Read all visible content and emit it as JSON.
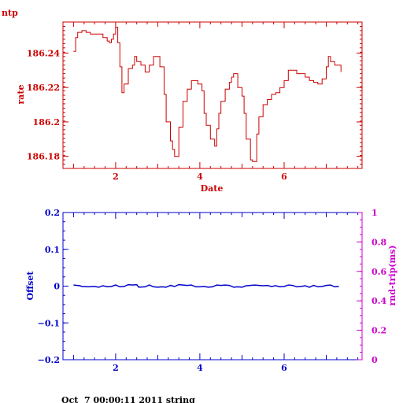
{
  "header_label": "ntp",
  "footer": "Oct  7 00:00:11 2011 string",
  "colors": {
    "top": "#cc0000",
    "offset": "#0000cc",
    "rtt": "#cc00cc",
    "footer": "#000000"
  },
  "chart_data": [
    {
      "type": "line",
      "title": "",
      "xlabel": "Date",
      "ylabel": "rate",
      "xlim": [
        0.75,
        7.85
      ],
      "ylim": [
        186.173,
        186.258
      ],
      "x_ticks": [
        2,
        4,
        6
      ],
      "y_ticks": [
        186.18,
        186.2,
        186.22,
        186.24
      ],
      "y_tick_labels": [
        "186.18",
        "186.2",
        "186.22",
        "186.24"
      ],
      "series": [
        {
          "x": [
            1.0,
            1.05,
            1.1,
            1.2,
            1.3,
            1.4,
            1.5,
            1.6,
            1.7,
            1.8,
            1.85,
            1.9,
            1.95,
            2.0,
            2.05,
            2.1,
            2.15,
            2.2,
            2.3,
            2.4,
            2.45,
            2.5,
            2.6,
            2.7,
            2.8,
            2.9,
            3.0,
            3.05,
            3.15,
            3.2,
            3.3,
            3.35,
            3.4,
            3.5,
            3.6,
            3.7,
            3.8,
            3.85,
            3.95,
            4.05,
            4.1,
            4.15,
            4.25,
            4.35,
            4.4,
            4.45,
            4.5,
            4.6,
            4.7,
            4.75,
            4.8,
            4.9,
            5.0,
            5.05,
            5.1,
            5.2,
            5.25,
            5.35,
            5.4,
            5.5,
            5.6,
            5.7,
            5.8,
            5.9,
            6.0,
            6.1,
            6.2,
            6.3,
            6.4,
            6.5,
            6.6,
            6.7,
            6.8,
            6.9,
            7.0,
            7.05,
            7.1,
            7.2,
            7.3,
            7.35
          ],
          "y": [
            186.241,
            186.249,
            186.252,
            186.253,
            186.252,
            186.251,
            186.251,
            186.251,
            186.249,
            186.247,
            186.246,
            186.248,
            186.251,
            186.255,
            186.246,
            186.232,
            186.217,
            186.222,
            186.231,
            186.233,
            186.238,
            186.235,
            186.233,
            186.229,
            186.233,
            186.238,
            186.238,
            186.232,
            186.216,
            186.2,
            186.189,
            186.184,
            186.18,
            186.197,
            186.212,
            186.219,
            186.224,
            186.224,
            186.222,
            186.218,
            186.205,
            186.198,
            186.19,
            186.186,
            186.196,
            186.205,
            186.212,
            186.219,
            186.223,
            186.226,
            186.228,
            186.22,
            186.215,
            186.205,
            186.19,
            186.178,
            186.177,
            186.193,
            186.203,
            186.21,
            186.213,
            186.216,
            186.217,
            186.22,
            186.224,
            186.23,
            186.23,
            186.228,
            186.228,
            186.226,
            186.224,
            186.223,
            186.222,
            186.225,
            186.232,
            186.238,
            186.235,
            186.233,
            186.233,
            186.229
          ]
        }
      ]
    },
    {
      "type": "line",
      "title": "",
      "xlabel": "",
      "ylabel": "Offset",
      "y2label": "rnd-trip(ms)",
      "xlim": [
        0.75,
        7.85
      ],
      "ylim": [
        -0.2,
        0.2
      ],
      "y2lim": [
        0,
        1
      ],
      "x_ticks": [
        2,
        4,
        6
      ],
      "y_ticks": [
        -0.2,
        -0.1,
        0,
        0.1,
        0.2
      ],
      "y_tick_labels": [
        "−0.2",
        "−0.1",
        "0",
        "0.1",
        "0.2"
      ],
      "y2_ticks": [
        0,
        0.2,
        0.4,
        0.6,
        0.8,
        1
      ],
      "y2_tick_labels": [
        "0",
        "0.2",
        "0.4",
        "0.6",
        "0.8",
        "1"
      ],
      "series": [
        {
          "x": [
            1.0,
            1.15,
            1.2,
            1.35,
            1.5,
            1.6,
            1.7,
            1.8,
            1.9,
            2.0,
            2.1,
            2.2,
            2.3,
            2.4,
            2.5,
            2.55,
            2.7,
            2.8,
            2.9,
            3.0,
            3.1,
            3.2,
            3.3,
            3.4,
            3.5,
            3.6,
            3.7,
            3.8,
            3.9,
            4.0,
            4.1,
            4.2,
            4.3,
            4.4,
            4.5,
            4.6,
            4.7,
            4.8,
            4.9,
            5.0,
            5.1,
            5.2,
            5.3,
            5.4,
            5.5,
            5.6,
            5.7,
            5.8,
            5.9,
            6.0,
            6.1,
            6.2,
            6.3,
            6.4,
            6.5,
            6.6,
            6.7,
            6.8,
            6.9,
            7.0,
            7.1,
            7.2,
            7.3
          ],
          "y": [
            0.003,
            0.001,
            -0.001,
            -0.002,
            -0.001,
            -0.003,
            0.001,
            -0.002,
            -0.001,
            0.003,
            -0.002,
            -0.001,
            0.004,
            0.003,
            0.004,
            -0.003,
            -0.002,
            0.003,
            -0.002,
            -0.003,
            -0.002,
            -0.003,
            0.002,
            -0.001,
            0.004,
            0.003,
            0.002,
            0.003,
            -0.002,
            -0.002,
            -0.001,
            -0.003,
            -0.002,
            0.003,
            0.002,
            0.003,
            0.002,
            -0.003,
            -0.002,
            -0.003,
            0.001,
            0.002,
            0.003,
            0.002,
            0.001,
            0.002,
            -0.001,
            0.001,
            -0.002,
            -0.001,
            0.003,
            0.002,
            -0.002,
            -0.001,
            0.001,
            -0.003,
            0.002,
            -0.002,
            -0.001,
            0.002,
            0.003,
            -0.002,
            -0.001
          ]
        }
      ]
    }
  ]
}
